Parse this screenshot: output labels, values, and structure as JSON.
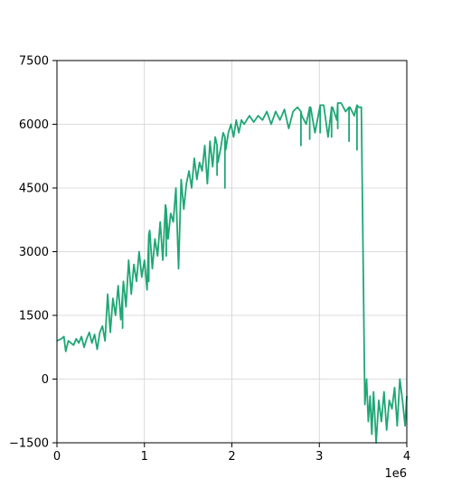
{
  "chart_data": {
    "type": "line",
    "title": "",
    "xlabel": "",
    "ylabel": "",
    "x_offset_label": "1e6",
    "xlim": [
      0,
      4000000
    ],
    "ylim": [
      -1500,
      7500
    ],
    "x_ticks": [
      0,
      1000000,
      2000000,
      3000000,
      4000000
    ],
    "x_tick_labels": [
      "0",
      "1",
      "2",
      "3",
      "4"
    ],
    "y_ticks": [
      -1500,
      0,
      1500,
      3000,
      4500,
      6000,
      7500
    ],
    "y_tick_labels": [
      "−1500",
      "0",
      "1500",
      "3000",
      "4500",
      "6000",
      "7500"
    ],
    "grid": true,
    "legend": "none",
    "series": [
      {
        "color": "#1fa774",
        "x": [
          0,
          50000,
          80000,
          100000,
          130000,
          160000,
          190000,
          220000,
          250000,
          280000,
          310000,
          340000,
          370000,
          400000,
          430000,
          460000,
          490000,
          520000,
          550000,
          580000,
          610000,
          640000,
          670000,
          700000,
          730000,
          760000,
          790000,
          820000,
          850000,
          880000,
          910000,
          940000,
          970000,
          1000000,
          1030000,
          1060000,
          1090000,
          1120000,
          1150000,
          1180000,
          1210000,
          1240000,
          1270000,
          1300000,
          1330000,
          1360000,
          1390000,
          1420000,
          1450000,
          1480000,
          1510000,
          1540000,
          1570000,
          1600000,
          1630000,
          1660000,
          1690000,
          1720000,
          1750000,
          1780000,
          1810000,
          1840000,
          1870000,
          1900000,
          1930000,
          1960000,
          1990000,
          2020000,
          2050000,
          2080000,
          2110000,
          2140000,
          2170000,
          2200000,
          2250000,
          2300000,
          2350000,
          2400000,
          2450000,
          2500000,
          2550000,
          2600000,
          2650000,
          2700000,
          2750000,
          2800000,
          2850000,
          2900000,
          2950000,
          3000000,
          3050000,
          3100000,
          3150000,
          3200000,
          3250000,
          3300000,
          3350000,
          3400000,
          3450000,
          3480000,
          3500000,
          3520000,
          3540000,
          3560000,
          3580000,
          3600000,
          3620000,
          3650000,
          3680000,
          3710000,
          3740000,
          3770000,
          3800000,
          3830000,
          3860000,
          3890000,
          3920000,
          3950000,
          3980000,
          4000000
        ],
        "y": [
          900,
          950,
          1000,
          650,
          900,
          850,
          800,
          950,
          850,
          1000,
          750,
          950,
          1100,
          850,
          1050,
          700,
          1100,
          1250,
          900,
          2000,
          1100,
          1900,
          1500,
          2200,
          1400,
          2300,
          1700,
          2800,
          2000,
          2700,
          2300,
          3000,
          2400,
          2800,
          2100,
          3500,
          2600,
          3300,
          2900,
          3700,
          2800,
          4100,
          3300,
          3900,
          3700,
          4500,
          2600,
          4700,
          4000,
          4600,
          4900,
          4500,
          5200,
          4700,
          5100,
          4900,
          5500,
          4600,
          5600,
          5000,
          5700,
          5100,
          5400,
          5800,
          5400,
          5800,
          6000,
          5700,
          6100,
          5800,
          6100,
          6000,
          6100,
          6200,
          6050,
          6200,
          6100,
          6300,
          6000,
          6300,
          6100,
          6350,
          5900,
          6300,
          6400,
          6200,
          6000,
          6400,
          5800,
          6350,
          6450,
          5700,
          6400,
          6100,
          6500,
          6300,
          6400,
          6200,
          6400,
          6400,
          3000,
          -600,
          0,
          -1000,
          -400,
          -1300,
          -300,
          -1500,
          -500,
          -1000,
          -300,
          -1200,
          -500,
          -700,
          -200,
          -1100,
          0,
          -500,
          -1100,
          -400
        ],
        "drops": [
          [
            2790000,
            6300,
            5500
          ],
          [
            2890000,
            6400,
            5650
          ],
          [
            3010000,
            6450,
            5800
          ],
          [
            3140000,
            6400,
            5700
          ],
          [
            3210000,
            6500,
            5900
          ],
          [
            3340000,
            6400,
            5600
          ],
          [
            3430000,
            6450,
            5400
          ],
          [
            1920000,
            5700,
            4500
          ],
          [
            1830000,
            5500,
            4800
          ],
          [
            1250000,
            4000,
            2900
          ],
          [
            1050000,
            3400,
            2300
          ],
          [
            750000,
            2000,
            1200
          ]
        ]
      }
    ]
  }
}
